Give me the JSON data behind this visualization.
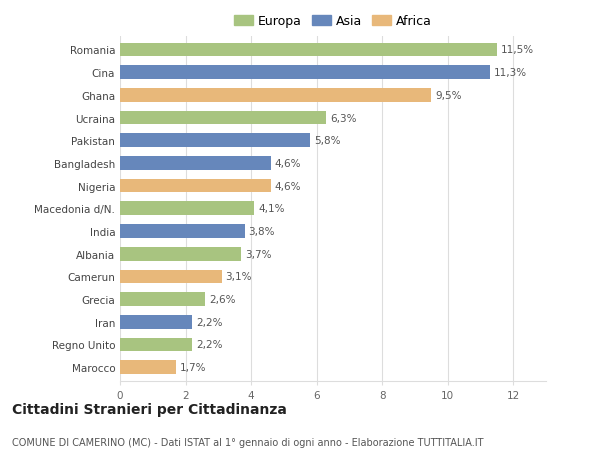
{
  "countries": [
    "Romania",
    "Cina",
    "Ghana",
    "Ucraina",
    "Pakistan",
    "Bangladesh",
    "Nigeria",
    "Macedonia d/N.",
    "India",
    "Albania",
    "Camerun",
    "Grecia",
    "Iran",
    "Regno Unito",
    "Marocco"
  ],
  "values": [
    11.5,
    11.3,
    9.5,
    6.3,
    5.8,
    4.6,
    4.6,
    4.1,
    3.8,
    3.7,
    3.1,
    2.6,
    2.2,
    2.2,
    1.7
  ],
  "labels": [
    "11,5%",
    "11,3%",
    "9,5%",
    "6,3%",
    "5,8%",
    "4,6%",
    "4,6%",
    "4,1%",
    "3,8%",
    "3,7%",
    "3,1%",
    "2,6%",
    "2,2%",
    "2,2%",
    "1,7%"
  ],
  "continents": [
    "Europa",
    "Asia",
    "Africa",
    "Europa",
    "Asia",
    "Asia",
    "Africa",
    "Europa",
    "Asia",
    "Europa",
    "Africa",
    "Europa",
    "Asia",
    "Europa",
    "Africa"
  ],
  "colors": {
    "Europa": "#a8c480",
    "Asia": "#6687bb",
    "Africa": "#e8b87a"
  },
  "legend_order": [
    "Europa",
    "Asia",
    "Africa"
  ],
  "title": "Cittadini Stranieri per Cittadinanza",
  "subtitle": "COMUNE DI CAMERINO (MC) - Dati ISTAT al 1° gennaio di ogni anno - Elaborazione TUTTITALIA.IT",
  "xlim": [
    0,
    13
  ],
  "xticks": [
    0,
    2,
    4,
    6,
    8,
    10,
    12
  ],
  "background_color": "#ffffff",
  "bar_height": 0.6,
  "grid_color": "#dddddd",
  "label_fontsize": 7.5,
  "tick_fontsize": 7.5,
  "title_fontsize": 10,
  "subtitle_fontsize": 7
}
